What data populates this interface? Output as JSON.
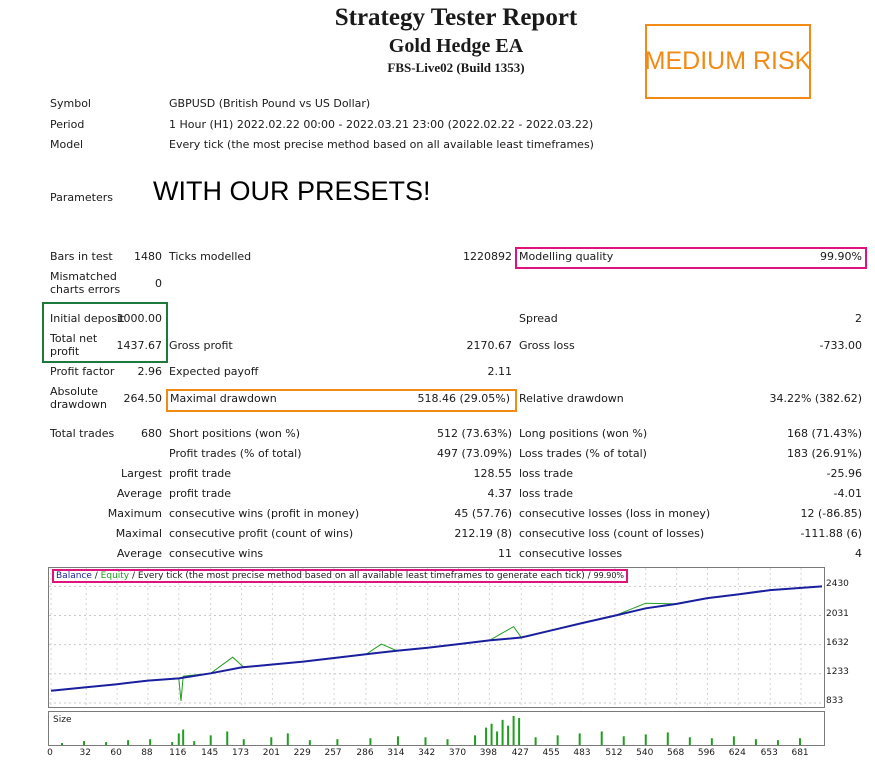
{
  "header": {
    "title": "Strategy Tester Report",
    "ea_name": "Gold Hedge EA",
    "server": "FBS-Live02 (Build 1353)",
    "risk_label": "MEDIUM RISK"
  },
  "info": {
    "symbol_label": "Symbol",
    "symbol_value": "GBPUSD (British Pound vs US Dollar)",
    "period_label": "Period",
    "period_value": "1 Hour (H1) 2022.02.22 00:00 - 2022.03.21 23:00 (2022.02.22 - 2022.03.22)",
    "model_label": "Model",
    "model_value": "Every tick (the most precise method based on all available least timeframes)",
    "parameters_label": "Parameters",
    "parameters_value": "WITH OUR PRESETS!"
  },
  "stats": {
    "bars_label": "Bars in test",
    "bars_value": "1480",
    "ticks_label": "Ticks modelled",
    "ticks_value": "1220892",
    "quality_label": "Modelling quality",
    "quality_value": "99.90%",
    "mismatch_label": "Mismatched charts errors",
    "mismatch_value": "0",
    "deposit_label": "Initial deposit",
    "deposit_value": "1000.00",
    "spread_label": "Spread",
    "spread_value": "2",
    "netprofit_label": "Total net profit",
    "netprofit_value": "1437.67",
    "grossprofit_label": "Gross profit",
    "grossprofit_value": "2170.67",
    "grossloss_label": "Gross loss",
    "grossloss_value": "-733.00",
    "pf_label": "Profit factor",
    "pf_value": "2.96",
    "ep_label": "Expected payoff",
    "ep_value": "2.11",
    "absdd_label": "Absolute drawdown",
    "absdd_value": "264.50",
    "maxdd_label": "Maximal drawdown",
    "maxdd_value": "518.46 (29.05%)",
    "reldd_label": "Relative drawdown",
    "reldd_value": "34.22% (382.62)",
    "trades_label": "Total trades",
    "trades_value": "680",
    "short_label": "Short positions (won %)",
    "short_value": "512 (73.63%)",
    "long_label": "Long positions (won %)",
    "long_value": "168 (71.43%)",
    "ptrades_label": "Profit trades (% of total)",
    "ptrades_value": "497 (73.09%)",
    "ltrades_label": "Loss trades (% of total)",
    "ltrades_value": "183 (26.91%)",
    "largest_label": "Largest",
    "largest_pt_label": "profit trade",
    "largest_pt_value": "128.55",
    "largest_lt_label": "loss trade",
    "largest_lt_value": "-25.96",
    "average_label": "Average",
    "average_pt_label": "profit trade",
    "average_pt_value": "4.37",
    "average_lt_label": "loss trade",
    "average_lt_value": "-4.01",
    "maximum_label": "Maximum",
    "max_cw_label": "consecutive wins (profit in money)",
    "max_cw_value": "45 (57.76)",
    "max_cl_label": "consecutive losses (loss in money)",
    "max_cl_value": "12 (-86.85)",
    "maximal_label": "Maximal",
    "mxl_cp_label": "consecutive profit (count of wins)",
    "mxl_cp_value": "212.19 (8)",
    "mxl_cl_label": "consecutive loss (count of losses)",
    "mxl_cl_value": "-111.88 (6)",
    "avg2_label": "Average",
    "avg_cw_label": "consecutive wins",
    "avg_cw_value": "11",
    "avg_cl_label": "consecutive losses",
    "avg_cl_value": "4"
  },
  "chart_legend": {
    "balance": "Balance",
    "sep1": " / ",
    "equity": "Equity",
    "sep2": " / ",
    "desc": "Every tick (the most precise method based on all available least timeframes to generate each tick)",
    "sep3": " / ",
    "quality": "99.90%"
  },
  "colors": {
    "balance": "#1a1f9e",
    "equity": "#1f9e1f",
    "highlight_pink": "#e0137e",
    "highlight_orange": "#f28a16",
    "highlight_green": "#1e7a3a"
  },
  "chart_data": {
    "type": "line",
    "ylim": [
      833,
      2600
    ],
    "y_ticks": [
      "2430",
      "2031",
      "1632",
      "1233",
      "833"
    ],
    "x_ticks": [
      "0",
      "32",
      "60",
      "88",
      "116",
      "145",
      "173",
      "201",
      "229",
      "257",
      "286",
      "314",
      "342",
      "370",
      "398",
      "427",
      "455",
      "483",
      "512",
      "540",
      "568",
      "596",
      "624",
      "653",
      "681"
    ],
    "xlim": [
      0,
      700
    ],
    "series": [
      {
        "name": "Balance",
        "x": [
          0,
          32,
          60,
          88,
          116,
          145,
          173,
          201,
          229,
          257,
          286,
          314,
          342,
          370,
          398,
          427,
          455,
          483,
          512,
          540,
          568,
          596,
          624,
          653,
          681,
          700
        ],
        "values": [
          1000,
          1050,
          1090,
          1140,
          1170,
          1240,
          1320,
          1360,
          1400,
          1450,
          1500,
          1550,
          1590,
          1640,
          1690,
          1730,
          1830,
          1930,
          2030,
          2130,
          2190,
          2270,
          2320,
          2380,
          2410,
          2430
        ]
      },
      {
        "name": "Equity",
        "x": [
          0,
          32,
          60,
          88,
          116,
          118,
          120,
          145,
          165,
          175,
          201,
          229,
          257,
          286,
          300,
          314,
          342,
          370,
          398,
          420,
          427,
          455,
          483,
          512,
          540,
          568,
          596,
          624,
          653,
          681,
          700
        ],
        "values": [
          1000,
          1050,
          1090,
          1140,
          1170,
          860,
          1200,
          1240,
          1460,
          1320,
          1360,
          1400,
          1450,
          1500,
          1640,
          1550,
          1590,
          1640,
          1690,
          1880,
          1730,
          1830,
          1930,
          2030,
          2200,
          2190,
          2270,
          2320,
          2380,
          2410,
          2430
        ]
      }
    ],
    "size_bars": {
      "x": [
        10,
        30,
        50,
        70,
        90,
        110,
        116,
        120,
        130,
        145,
        160,
        175,
        200,
        215,
        235,
        260,
        290,
        315,
        340,
        360,
        385,
        395,
        400,
        405,
        410,
        415,
        420,
        425,
        440,
        460,
        480,
        500,
        520,
        540,
        560,
        580,
        600,
        620,
        640,
        660,
        680
      ],
      "values": [
        2,
        4,
        3,
        5,
        6,
        3,
        12,
        16,
        4,
        10,
        14,
        6,
        8,
        12,
        5,
        6,
        7,
        9,
        8,
        6,
        10,
        18,
        22,
        14,
        26,
        20,
        30,
        28,
        8,
        10,
        12,
        14,
        9,
        11,
        13,
        8,
        7,
        9,
        6,
        5,
        7
      ]
    }
  }
}
